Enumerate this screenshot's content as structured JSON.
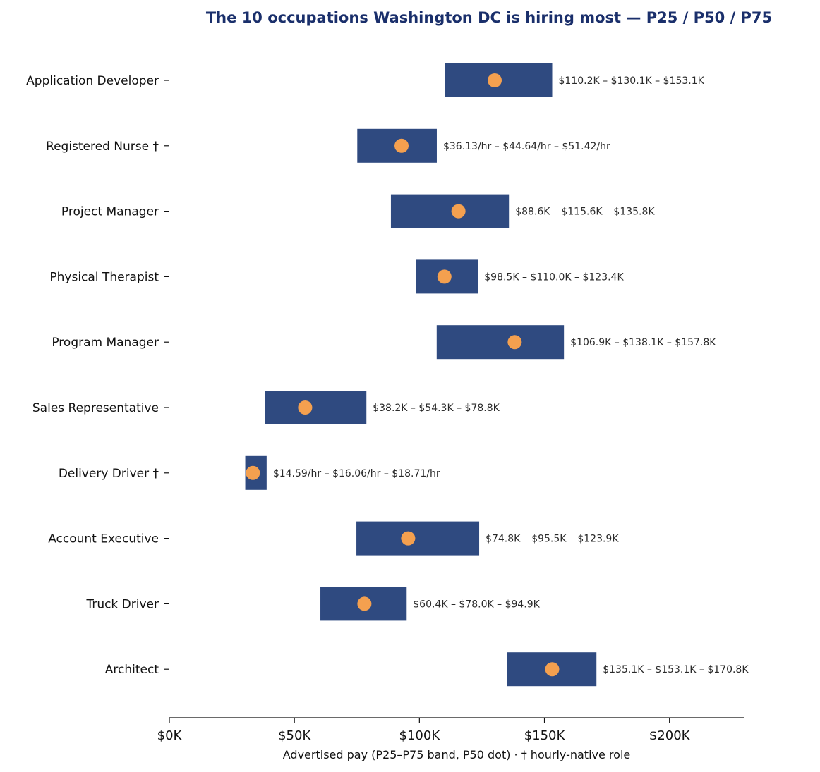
{
  "chart_data": {
    "type": "bar",
    "subtype": "range-band-with-median-dot",
    "title": "The 10 occupations Washington DC is hiring most — P25 / P50 / P75",
    "xlabel": "Advertised pay (P25–P75 band, P50 dot) · † hourly-native role",
    "ylabel": "",
    "xlim": [
      0,
      230000
    ],
    "x_ticks": [
      0,
      50000,
      100000,
      150000,
      200000
    ],
    "x_tick_labels": [
      "$0K",
      "$50K",
      "$100K",
      "$150K",
      "$200K"
    ],
    "grid": false,
    "legend": "none",
    "colors": {
      "band": "#2f4a80",
      "median_dot": "#f4a04f",
      "title": "#1a2f6b"
    },
    "categories": [
      "Application Developer",
      "Registered Nurse †",
      "Project Manager",
      "Physical Therapist",
      "Program Manager",
      "Sales Representative",
      "Delivery Driver †",
      "Account Executive",
      "Truck Driver",
      "Architect"
    ],
    "series": [
      {
        "name": "P25",
        "values": [
          110200,
          75150,
          88600,
          98500,
          106900,
          38200,
          30350,
          74800,
          60400,
          135100
        ]
      },
      {
        "name": "P50",
        "values": [
          130100,
          92850,
          115600,
          110000,
          138100,
          54300,
          33400,
          95500,
          78000,
          153100
        ]
      },
      {
        "name": "P75",
        "values": [
          153100,
          106950,
          135800,
          123400,
          157800,
          78800,
          38900,
          123900,
          94900,
          170800
        ]
      }
    ],
    "data_labels": [
      "$110.2K – $130.1K – $153.1K",
      "$36.13/hr – $44.64/hr – $51.42/hr",
      "$88.6K – $115.6K – $135.8K",
      "$98.5K – $110.0K – $123.4K",
      "$106.9K – $138.1K – $157.8K",
      "$38.2K – $54.3K – $78.8K",
      "$14.59/hr – $16.06/hr – $18.71/hr",
      "$74.8K – $95.5K – $123.9K",
      "$60.4K – $78.0K – $94.9K",
      "$135.1K – $153.1K – $170.8K"
    ]
  }
}
